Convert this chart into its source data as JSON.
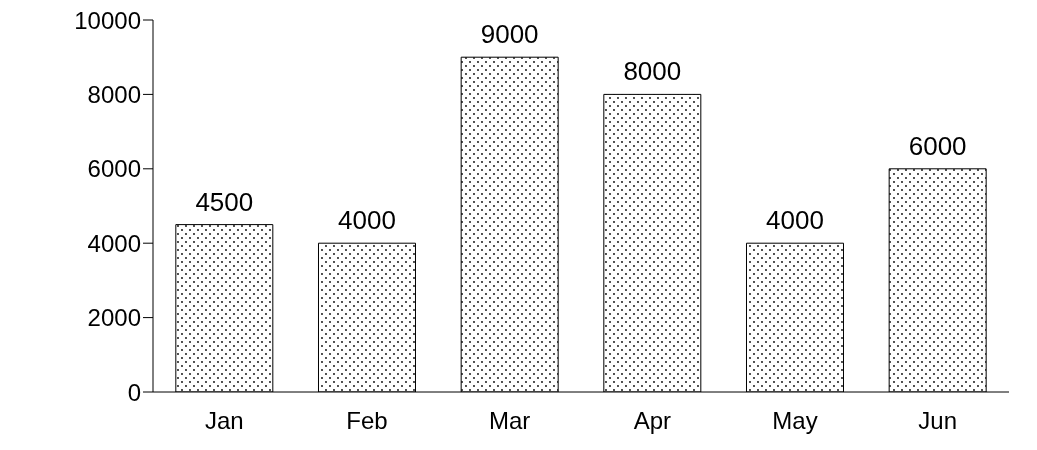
{
  "chart_data": {
    "type": "bar",
    "categories": [
      "Jan",
      "Feb",
      "Mar",
      "Apr",
      "May",
      "Jun"
    ],
    "values": [
      4500,
      4000,
      9000,
      8000,
      4000,
      6000
    ],
    "color": "#000000",
    "ylim": [
      0,
      10000
    ],
    "yticks": [
      0,
      2000,
      4000,
      6000,
      8000,
      10000
    ],
    "grid": false,
    "data_labels": true
  }
}
